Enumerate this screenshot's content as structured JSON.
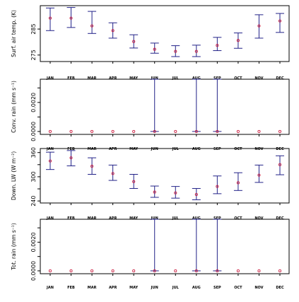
{
  "chart_data": [
    {
      "type": "scatter",
      "ylabel": "Surf. air temp. (K)",
      "categories": [
        "JAN",
        "FEB",
        "MAR",
        "APR",
        "MAY",
        "JUN",
        "JUL",
        "AUG",
        "SEP",
        "OCT",
        "NOV",
        "DEC"
      ],
      "yticks": [
        275,
        285
      ],
      "ytick_labels": [
        "275",
        "285"
      ],
      "ylim": [
        272.5,
        294
      ],
      "values": [
        289.2,
        289.2,
        286.2,
        284.4,
        280.2,
        277.2,
        276.4,
        276.4,
        278.7,
        280.6,
        286.2,
        288.1
      ],
      "error_low": [
        284.4,
        285.6,
        283.3,
        281.5,
        277.7,
        275.7,
        274.4,
        274.4,
        276.7,
        277.6,
        281.5,
        283.7
      ],
      "error_high": [
        293.1,
        293.3,
        291.8,
        287.4,
        282.8,
        279.6,
        278.6,
        278.8,
        281.8,
        283.5,
        290.5,
        291.0
      ],
      "colors": {
        "point": "#cc2244",
        "errorbar": "#222288",
        "axis": "#000000"
      }
    },
    {
      "type": "scatter",
      "ylabel": "Conv. rain (mm s⁻¹)",
      "categories": [
        "JAN",
        "FEB",
        "MAR",
        "APR",
        "MAY",
        "JUN",
        "JUL",
        "AUG",
        "SEP",
        "OCT",
        "NOV",
        "DEC"
      ],
      "yticks": [
        0.0,
        0.001,
        0.002,
        0.003
      ],
      "ytick_labels": [
        "0.0000",
        "",
        "0.0020",
        ""
      ],
      "ylim": [
        -0.0002,
        0.0036
      ],
      "values": [
        0,
        0,
        0,
        0,
        0,
        0,
        0,
        0,
        0,
        0,
        0,
        0
      ],
      "error_low": [
        0,
        0,
        0,
        0,
        0,
        0,
        0,
        0,
        0,
        0,
        0,
        0
      ],
      "error_high": [
        0,
        0,
        0,
        0,
        0,
        0.0036,
        0,
        0.0036,
        0.0036,
        0,
        0,
        0
      ],
      "colors": {
        "point": "#cc2244",
        "errorbar": "#222288",
        "axis": "#000000"
      }
    },
    {
      "type": "scatter",
      "ylabel": "Down. LW (W m⁻²)",
      "categories": [
        "JAN",
        "FEB",
        "MAR",
        "APR",
        "MAY",
        "JUN",
        "JUL",
        "AUG",
        "SEP",
        "OCT",
        "NOV",
        "DEC"
      ],
      "yticks": [
        240,
        270,
        300,
        330,
        360
      ],
      "ytick_labels": [
        "240",
        "",
        "300",
        "",
        "360"
      ],
      "ylim": [
        235,
        370
      ],
      "values": [
        339,
        347,
        326,
        308,
        288,
        262,
        260,
        256,
        276,
        285,
        304,
        330
      ],
      "error_low": [
        318,
        327,
        306,
        291,
        271,
        249,
        247,
        243,
        258,
        266,
        286,
        305
      ],
      "error_high": [
        361,
        365,
        347,
        329,
        306,
        277,
        276,
        271,
        302,
        310,
        329,
        352
      ],
      "colors": {
        "point": "#cc2244",
        "errorbar": "#222288",
        "axis": "#000000"
      }
    },
    {
      "type": "scatter",
      "ylabel": "Tot. rain (mm s⁻¹)",
      "categories": [
        "JAN",
        "FEB",
        "MAR",
        "APR",
        "MAY",
        "JUN",
        "JUL",
        "AUG",
        "SEP",
        "OCT",
        "NOV",
        "DEC"
      ],
      "yticks": [
        0.0,
        0.001,
        0.002,
        0.003
      ],
      "ytick_labels": [
        "0.0000",
        "",
        "0.0020",
        ""
      ],
      "ylim": [
        -0.0002,
        0.0036
      ],
      "values": [
        0,
        0,
        0,
        0,
        0,
        0,
        0,
        0,
        0,
        0,
        0,
        0
      ],
      "error_low": [
        0,
        0,
        0,
        0,
        0,
        0,
        0,
        0,
        0,
        0,
        0,
        0
      ],
      "error_high": [
        0,
        0,
        0,
        0,
        0,
        0.0036,
        0,
        0.0036,
        0.0036,
        0,
        0,
        0
      ],
      "colors": {
        "point": "#cc2244",
        "errorbar": "#222288",
        "axis": "#000000"
      }
    }
  ]
}
